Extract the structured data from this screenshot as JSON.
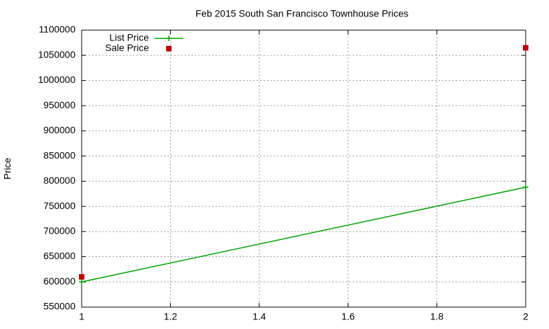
{
  "chart_data": {
    "type": "line",
    "title": "Feb 2015 South San Francisco Townhouse Prices",
    "y_label": "Price",
    "series": [
      {
        "name": "List Price",
        "color": "#00a000",
        "style": "linespoints",
        "x": [
          1,
          2
        ],
        "values": [
          600000,
          788000
        ]
      },
      {
        "name": "Sale Price",
        "color": "#c00000",
        "style": "points",
        "x": [
          1,
          2
        ],
        "values": [
          610000,
          1065000
        ]
      }
    ],
    "xlim": [
      1,
      2
    ],
    "xticks": [
      1,
      1.2,
      1.4,
      1.6,
      1.8,
      2
    ],
    "ylim": [
      550000,
      1100000
    ],
    "yticks": [
      550000,
      600000,
      650000,
      700000,
      750000,
      800000,
      850000,
      900000,
      950000,
      1000000,
      1050000,
      1100000
    ],
    "grid": true,
    "legend": "top-left"
  }
}
